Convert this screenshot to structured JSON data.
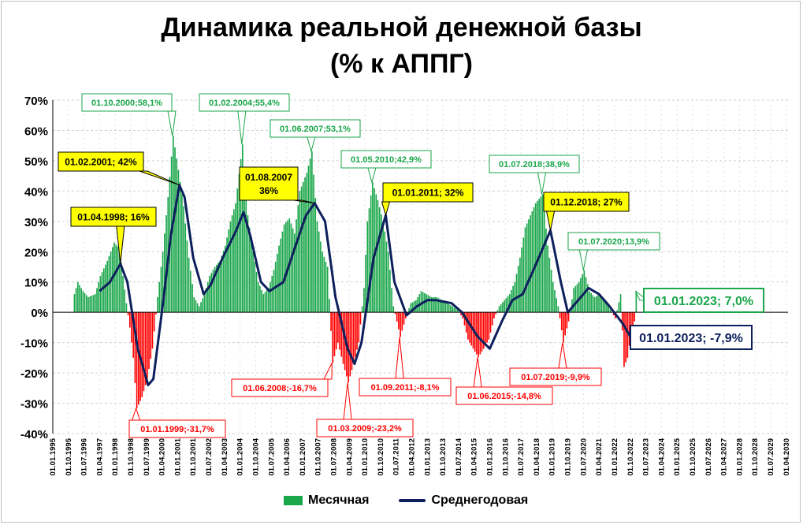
{
  "title_line1": "Динамика реальной денежной базы",
  "title_line2": "(% к АППГ)",
  "legend": {
    "monthly": "Месячная",
    "annual": "Среднегодовая"
  },
  "colors": {
    "positive": "#1aa64a",
    "negative": "#ff0000",
    "line": "#0d1f5c",
    "label_yellow": "#ffff00",
    "label_green_border": "#1aa64a",
    "label_red_border": "#ff0000"
  },
  "chart_data": {
    "type": "bar",
    "xlim": [
      "1995-01",
      "2030-04"
    ],
    "ylim": [
      -40,
      70
    ],
    "yticks": [
      "70%",
      "60%",
      "50%",
      "40%",
      "30%",
      "20%",
      "10%",
      "0%",
      "-10%",
      "-20%",
      "-30%",
      "-40%"
    ],
    "xticks": [
      "01.01.1995",
      "01.10.1995",
      "01.07.1996",
      "01.04.1997",
      "01.01.1998",
      "01.10.1998",
      "01.07.1999",
      "01.04.2000",
      "01.01.2001",
      "01.10.2001",
      "01.07.2002",
      "01.04.2003",
      "01.01.2004",
      "01.10.2004",
      "01.07.2005",
      "01.04.2006",
      "01.01.2007",
      "01.10.2007",
      "01.07.2008",
      "01.04.2009",
      "01.01.2010",
      "01.10.2010",
      "01.07.2011",
      "01.04.2012",
      "01.01.2013",
      "01.10.2013",
      "01.07.2014",
      "01.04.2015",
      "01.01.2016",
      "01.10.2016",
      "01.07.2017",
      "01.04.2018",
      "01.01.2019",
      "01.10.2019",
      "01.07.2020",
      "01.04.2021",
      "01.01.2022",
      "01.10.2022",
      "01.07.2023",
      "01.04.2024",
      "01.01.2025",
      "01.10.2025",
      "01.07.2026",
      "01.04.2027",
      "01.01.2028",
      "01.10.2028",
      "01.07.2029",
      "01.04.2030"
    ],
    "grid": true,
    "monthly_keypoints": [
      [
        "1996-01",
        6
      ],
      [
        "1996-03",
        10
      ],
      [
        "1996-06",
        7
      ],
      [
        "1996-09",
        5
      ],
      [
        "1997-01",
        6
      ],
      [
        "1997-04",
        12
      ],
      [
        "1997-08",
        17
      ],
      [
        "1997-12",
        23
      ],
      [
        "1998-03",
        21
      ],
      [
        "1998-05",
        12
      ],
      [
        "1998-07",
        3
      ],
      [
        "1998-09",
        -5
      ],
      [
        "1998-11",
        -15
      ],
      [
        "1999-01",
        -31.7
      ],
      [
        "1999-04",
        -28
      ],
      [
        "1999-07",
        -22
      ],
      [
        "1999-10",
        -12
      ],
      [
        "2000-01",
        5
      ],
      [
        "2000-04",
        20
      ],
      [
        "2000-07",
        38
      ],
      [
        "2000-10",
        58.1
      ],
      [
        "2001-01",
        47
      ],
      [
        "2001-04",
        35
      ],
      [
        "2001-07",
        18
      ],
      [
        "2001-10",
        5
      ],
      [
        "2002-01",
        2
      ],
      [
        "2002-04",
        6
      ],
      [
        "2002-07",
        12
      ],
      [
        "2002-10",
        15
      ],
      [
        "2003-01",
        17
      ],
      [
        "2003-04",
        22
      ],
      [
        "2003-07",
        30
      ],
      [
        "2003-10",
        36
      ],
      [
        "2004-02",
        55.4
      ],
      [
        "2004-05",
        32
      ],
      [
        "2004-08",
        20
      ],
      [
        "2004-11",
        10
      ],
      [
        "2005-02",
        6
      ],
      [
        "2005-05",
        8
      ],
      [
        "2005-08",
        14
      ],
      [
        "2005-11",
        22
      ],
      [
        "2006-02",
        29
      ],
      [
        "2006-05",
        31
      ],
      [
        "2006-08",
        26
      ],
      [
        "2006-11",
        40
      ],
      [
        "2007-03",
        46
      ],
      [
        "2007-06",
        53.1
      ],
      [
        "2007-09",
        30
      ],
      [
        "2007-12",
        20
      ],
      [
        "2008-03",
        15
      ],
      [
        "2008-06",
        -16.7
      ],
      [
        "2008-09",
        -10
      ],
      [
        "2008-12",
        -17
      ],
      [
        "2009-03",
        -23.2
      ],
      [
        "2009-06",
        -17
      ],
      [
        "2009-09",
        -10
      ],
      [
        "2009-12",
        8
      ],
      [
        "2010-02",
        30
      ],
      [
        "2010-05",
        42.9
      ],
      [
        "2010-08",
        37
      ],
      [
        "2010-11",
        30
      ],
      [
        "2011-02",
        20
      ],
      [
        "2011-05",
        2
      ],
      [
        "2011-09",
        -8.1
      ],
      [
        "2011-12",
        -2
      ],
      [
        "2012-03",
        3
      ],
      [
        "2012-06",
        4
      ],
      [
        "2012-09",
        7
      ],
      [
        "2012-12",
        6
      ],
      [
        "2013-03",
        5
      ],
      [
        "2013-06",
        5
      ],
      [
        "2013-09",
        4
      ],
      [
        "2013-12",
        3
      ],
      [
        "2014-03",
        2
      ],
      [
        "2014-06",
        1
      ],
      [
        "2014-09",
        -2
      ],
      [
        "2014-12",
        -9
      ],
      [
        "2015-03",
        -12
      ],
      [
        "2015-06",
        -14.8
      ],
      [
        "2015-09",
        -12
      ],
      [
        "2015-12",
        -9
      ],
      [
        "2016-03",
        -2
      ],
      [
        "2016-06",
        2
      ],
      [
        "2016-09",
        4
      ],
      [
        "2016-12",
        6
      ],
      [
        "2017-03",
        10
      ],
      [
        "2017-06",
        18
      ],
      [
        "2017-09",
        28
      ],
      [
        "2017-12",
        32
      ],
      [
        "2018-03",
        36
      ],
      [
        "2018-07",
        38.9
      ],
      [
        "2018-10",
        22
      ],
      [
        "2019-01",
        10
      ],
      [
        "2019-04",
        2
      ],
      [
        "2019-07",
        -9.9
      ],
      [
        "2019-10",
        -3
      ],
      [
        "2020-01",
        8
      ],
      [
        "2020-04",
        10
      ],
      [
        "2020-07",
        13.9
      ],
      [
        "2020-10",
        7
      ],
      [
        "2021-01",
        5
      ],
      [
        "2021-04",
        6
      ],
      [
        "2021-07",
        4
      ],
      [
        "2021-10",
        1
      ],
      [
        "2022-01",
        -2
      ],
      [
        "2022-04",
        6
      ],
      [
        "2022-06",
        -18
      ],
      [
        "2022-08",
        -15
      ],
      [
        "2022-10",
        -7
      ],
      [
        "2022-12",
        -3
      ],
      [
        "2023-01",
        7.0
      ]
    ],
    "annual_keypoints": [
      [
        "1997-04",
        7
      ],
      [
        "1997-10",
        10
      ],
      [
        "1998-04",
        16
      ],
      [
        "1998-08",
        10
      ],
      [
        "1999-02",
        -12
      ],
      [
        "1999-08",
        -24
      ],
      [
        "1999-11",
        -22
      ],
      [
        "2000-05",
        5
      ],
      [
        "2000-09",
        25
      ],
      [
        "2001-02",
        42
      ],
      [
        "2001-05",
        38
      ],
      [
        "2001-10",
        18
      ],
      [
        "2002-04",
        6
      ],
      [
        "2002-08",
        9
      ],
      [
        "2003-03",
        18
      ],
      [
        "2003-10",
        26
      ],
      [
        "2004-03",
        33
      ],
      [
        "2004-07",
        25
      ],
      [
        "2005-01",
        10
      ],
      [
        "2005-06",
        7
      ],
      [
        "2006-02",
        10
      ],
      [
        "2006-09",
        22
      ],
      [
        "2007-03",
        32
      ],
      [
        "2007-08",
        36
      ],
      [
        "2008-02",
        30
      ],
      [
        "2008-08",
        5
      ],
      [
        "2009-03",
        -12
      ],
      [
        "2009-07",
        -17
      ],
      [
        "2009-11",
        -10
      ],
      [
        "2010-06",
        18
      ],
      [
        "2011-01",
        32
      ],
      [
        "2011-06",
        10
      ],
      [
        "2012-01",
        -1
      ],
      [
        "2012-07",
        2
      ],
      [
        "2013-01",
        4
      ],
      [
        "2013-06",
        4
      ],
      [
        "2014-03",
        3
      ],
      [
        "2014-09",
        0
      ],
      [
        "2015-06",
        -8
      ],
      [
        "2016-01",
        -12
      ],
      [
        "2016-08",
        -3
      ],
      [
        "2017-02",
        4
      ],
      [
        "2017-08",
        6
      ],
      [
        "2018-03",
        15
      ],
      [
        "2018-12",
        27
      ],
      [
        "2019-06",
        10
      ],
      [
        "2019-10",
        0
      ],
      [
        "2020-04",
        4
      ],
      [
        "2020-10",
        8
      ],
      [
        "2021-04",
        6
      ],
      [
        "2021-10",
        2
      ],
      [
        "2022-06",
        -4
      ],
      [
        "2022-10",
        -8
      ],
      [
        "2023-01",
        -7.9
      ]
    ],
    "annotations": [
      {
        "text": "01.10.2000;58,1%",
        "style": "green"
      },
      {
        "text": "01.02.2004;55,4%",
        "style": "green"
      },
      {
        "text": "01.06.2007;53,1%",
        "style": "green"
      },
      {
        "text": "01.05.2010;42,9%",
        "style": "green"
      },
      {
        "text": "01.07.2018;38,9%",
        "style": "green"
      },
      {
        "text": "01.07.2020;13,9%",
        "style": "green"
      },
      {
        "text": "01.01.2023; 7,0%",
        "style": "green-big"
      },
      {
        "text": "01.02.2001; 42%",
        "style": "yellow"
      },
      {
        "text": "01.04.1998; 16%",
        "style": "yellow"
      },
      {
        "text": "01.08.2007",
        "text2": "36%",
        "style": "yellow"
      },
      {
        "text": "01.01.2011; 32%",
        "style": "yellow"
      },
      {
        "text": "01.12.2018; 27%",
        "style": "yellow"
      },
      {
        "text": "01.01.1999;-31,7%",
        "style": "red"
      },
      {
        "text": "01.06.2008;-16,7%",
        "style": "red"
      },
      {
        "text": "01.03.2009;-23,2%",
        "style": "red"
      },
      {
        "text": "01.09.2011;-8,1%",
        "style": "red"
      },
      {
        "text": "01.06.2015;-14,8%",
        "style": "red"
      },
      {
        "text": "01.07.2019;-9,9%",
        "style": "red"
      },
      {
        "text": "01.01.2023; -7,9%",
        "style": "navy-big"
      }
    ]
  }
}
